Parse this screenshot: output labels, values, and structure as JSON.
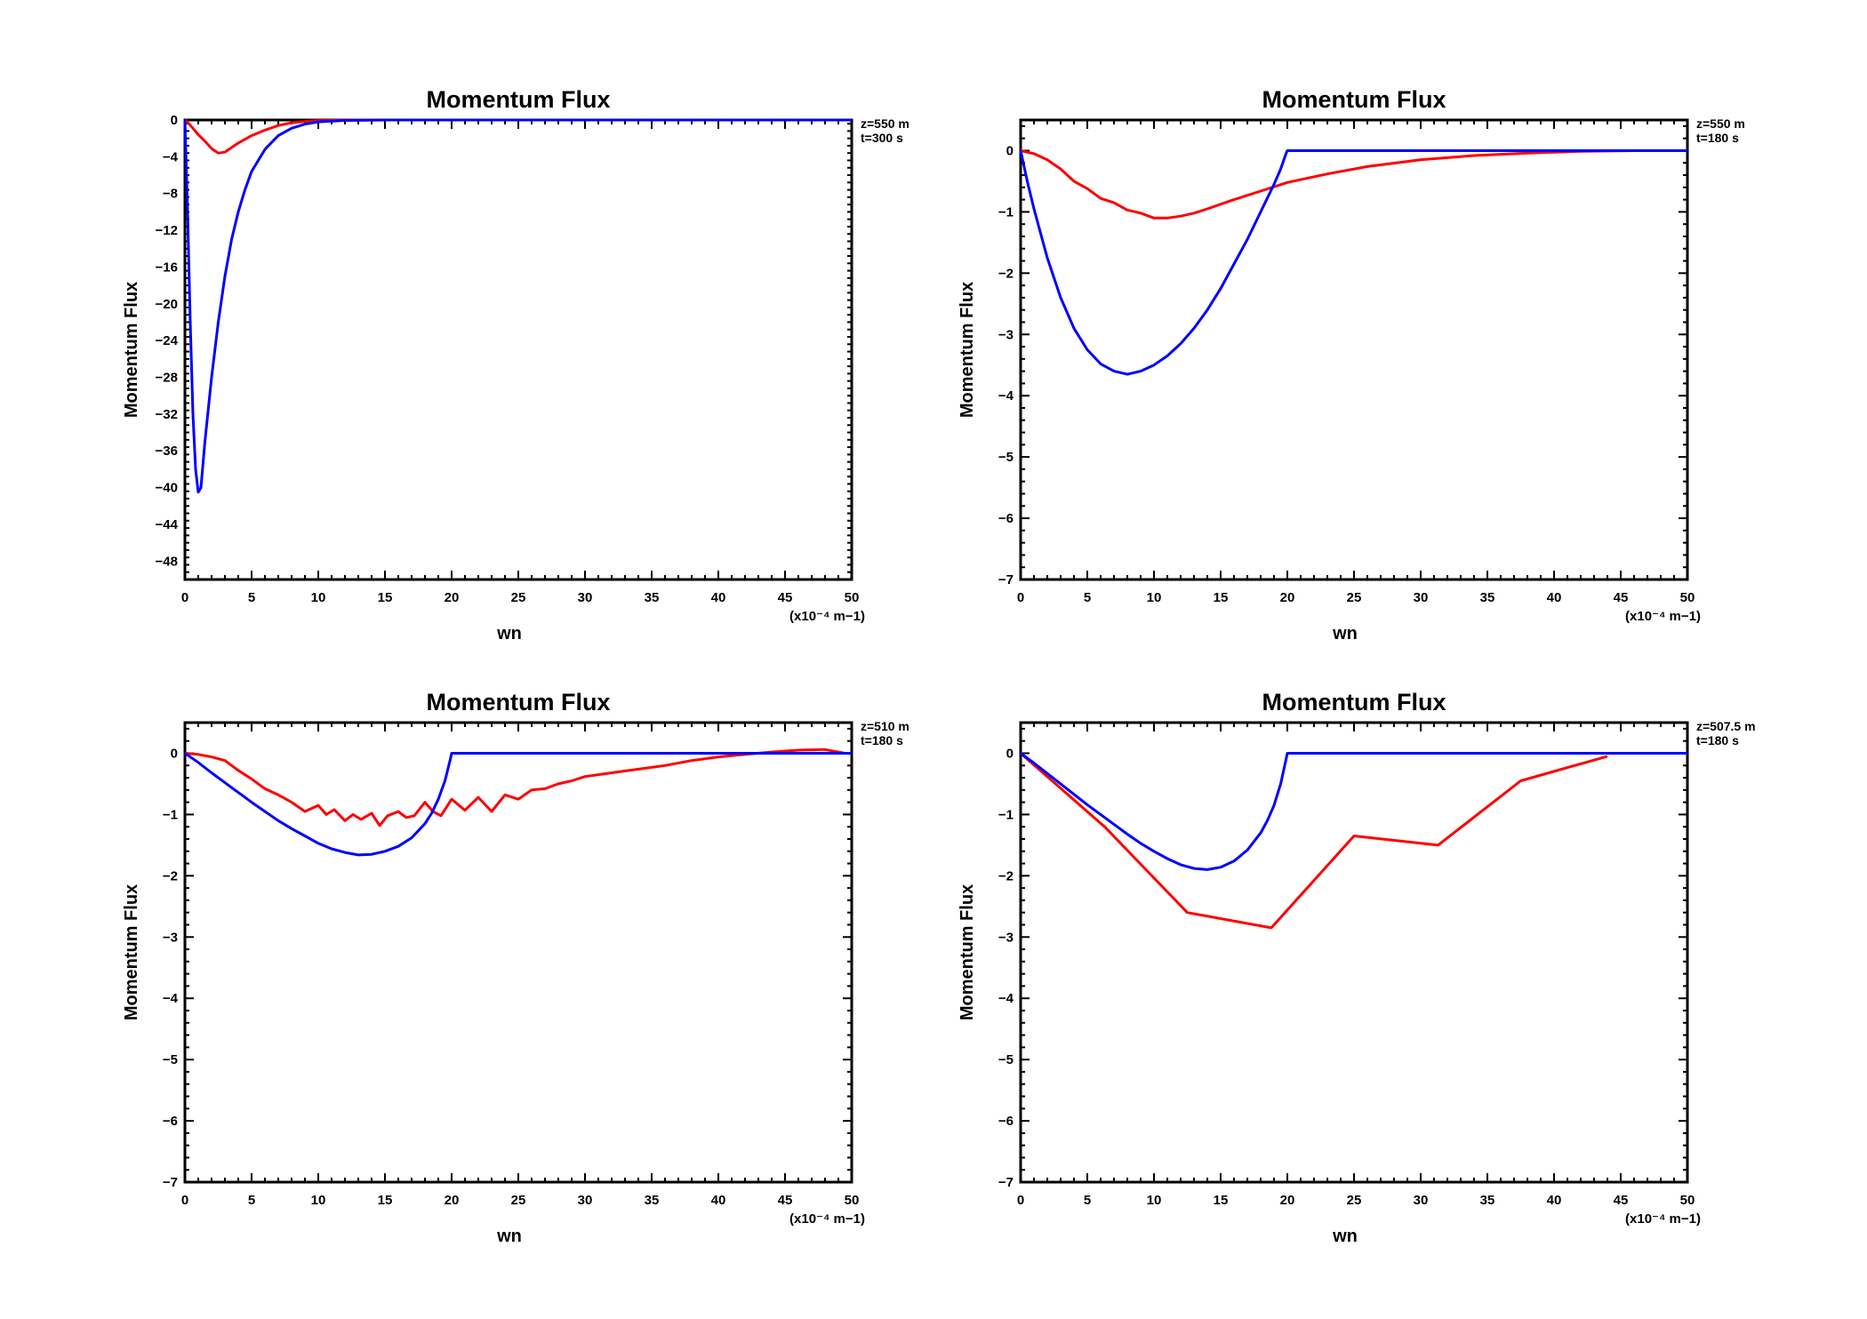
{
  "chart_data": [
    {
      "type": "line",
      "title": "Momentum Flux",
      "xlabel": "wn",
      "ylabel": "Momentum Flux",
      "x_unit": "(x10⁻⁴ m−1)",
      "annotations": [
        "z=550  m",
        "t=300  s"
      ],
      "xlim": [
        0,
        50
      ],
      "ylim": [
        -50,
        0
      ],
      "xticks": [
        0,
        5,
        10,
        15,
        20,
        25,
        30,
        35,
        40,
        45,
        50
      ],
      "yticks": [
        0,
        -4,
        -8,
        -12,
        -16,
        -20,
        -24,
        -28,
        -32,
        -36,
        -40,
        -44,
        -48
      ],
      "grid": false,
      "series": [
        {
          "color": "#ff0000",
          "x": [
            0,
            0.3,
            0.6,
            1,
            1.5,
            2,
            2.5,
            3,
            3.5,
            4,
            5,
            6,
            7,
            8,
            9,
            10,
            12,
            15,
            20,
            30,
            40,
            50
          ],
          "y": [
            0,
            -0.4,
            -0.9,
            -1.6,
            -2.3,
            -3.1,
            -3.6,
            -3.5,
            -3.0,
            -2.5,
            -1.7,
            -1.1,
            -0.6,
            -0.3,
            -0.15,
            -0.08,
            -0.03,
            0,
            0,
            0,
            0,
            0
          ]
        },
        {
          "color": "#0000ff",
          "x": [
            0,
            0.2,
            0.4,
            0.6,
            0.8,
            1.0,
            1.2,
            1.5,
            2,
            2.5,
            3,
            3.5,
            4,
            4.5,
            5,
            6,
            7,
            8,
            9,
            10,
            12,
            15,
            20,
            30,
            40,
            50
          ],
          "y": [
            0,
            -10,
            -22,
            -32,
            -38,
            -40.5,
            -40,
            -35,
            -28,
            -22,
            -17,
            -13,
            -10,
            -7.6,
            -5.6,
            -3.2,
            -1.7,
            -0.9,
            -0.45,
            -0.2,
            -0.05,
            0,
            0,
            0,
            0,
            0
          ]
        }
      ]
    },
    {
      "type": "line",
      "title": "Momentum Flux",
      "xlabel": "wn",
      "ylabel": "Momentum Flux",
      "x_unit": "(x10⁻⁴ m−1)",
      "annotations": [
        "z=550  m",
        "t=180  s"
      ],
      "xlim": [
        0,
        50
      ],
      "ylim": [
        -7,
        0.5
      ],
      "xticks": [
        0,
        5,
        10,
        15,
        20,
        25,
        30,
        35,
        40,
        45,
        50
      ],
      "yticks": [
        0,
        -1,
        -2,
        -3,
        -4,
        -5,
        -6,
        -7
      ],
      "grid": false,
      "series": [
        {
          "color": "#ff0000",
          "x": [
            0,
            1,
            2,
            3,
            4,
            5,
            6,
            7,
            8,
            9,
            10,
            11,
            12,
            13,
            14,
            16,
            18,
            20,
            23,
            26,
            30,
            34,
            38,
            42,
            46,
            50
          ],
          "y": [
            0,
            -0.05,
            -0.15,
            -0.3,
            -0.5,
            -0.62,
            -0.78,
            -0.85,
            -0.97,
            -1.02,
            -1.1,
            -1.1,
            -1.07,
            -1.02,
            -0.95,
            -0.8,
            -0.66,
            -0.52,
            -0.38,
            -0.26,
            -0.15,
            -0.08,
            -0.04,
            -0.01,
            0,
            0
          ]
        },
        {
          "color": "#0000ff",
          "x": [
            0,
            0.5,
            1,
            2,
            3,
            4,
            5,
            6,
            7,
            8,
            9,
            10,
            11,
            12,
            13,
            14,
            15,
            16,
            17,
            18,
            19,
            19.5,
            19.9,
            20,
            30,
            40,
            50
          ],
          "y": [
            0,
            -0.5,
            -0.95,
            -1.75,
            -2.4,
            -2.9,
            -3.25,
            -3.48,
            -3.6,
            -3.65,
            -3.6,
            -3.5,
            -3.35,
            -3.15,
            -2.9,
            -2.6,
            -2.25,
            -1.85,
            -1.45,
            -1.0,
            -0.55,
            -0.3,
            -0.05,
            0,
            0,
            0,
            0
          ]
        }
      ]
    },
    {
      "type": "line",
      "title": "Momentum Flux",
      "xlabel": "wn",
      "ylabel": "Momentum Flux",
      "x_unit": "(x10⁻⁴ m−1)",
      "annotations": [
        "z=510  m",
        "t=180  s"
      ],
      "xlim": [
        0,
        50
      ],
      "ylim": [
        -7,
        0.5
      ],
      "xticks": [
        0,
        5,
        10,
        15,
        20,
        25,
        30,
        35,
        40,
        45,
        50
      ],
      "yticks": [
        0,
        -1,
        -2,
        -3,
        -4,
        -5,
        -6,
        -7
      ],
      "grid": false,
      "series": [
        {
          "color": "#ff0000",
          "x": [
            0,
            1,
            2,
            3,
            4,
            5,
            6,
            7,
            8,
            9,
            10,
            10.6,
            11.2,
            12,
            12.6,
            13.2,
            14,
            14.6,
            15.2,
            16,
            16.6,
            17.2,
            18,
            18.6,
            19.2,
            20,
            21,
            22,
            23,
            24,
            25,
            26,
            27,
            28,
            29,
            30,
            32,
            34,
            36,
            38,
            40,
            42,
            44,
            46,
            48,
            49.5
          ],
          "y": [
            0,
            -0.02,
            -0.06,
            -0.12,
            -0.28,
            -0.42,
            -0.58,
            -0.68,
            -0.8,
            -0.95,
            -0.85,
            -1.0,
            -0.92,
            -1.1,
            -1.0,
            -1.08,
            -0.98,
            -1.18,
            -1.02,
            -0.95,
            -1.05,
            -1.02,
            -0.8,
            -0.95,
            -1.02,
            -0.75,
            -0.93,
            -0.72,
            -0.95,
            -0.68,
            -0.75,
            -0.6,
            -0.58,
            -0.5,
            -0.45,
            -0.38,
            -0.32,
            -0.26,
            -0.2,
            -0.12,
            -0.06,
            -0.02,
            0.02,
            0.05,
            0.06,
            0.0
          ]
        },
        {
          "color": "#0000ff",
          "x": [
            0,
            1,
            2,
            3,
            4,
            5,
            6,
            7,
            8,
            9,
            10,
            11,
            12,
            13,
            14,
            15,
            16,
            17,
            18,
            18.5,
            19,
            19.5,
            19.9,
            20,
            30,
            40,
            50
          ],
          "y": [
            0,
            -0.15,
            -0.32,
            -0.48,
            -0.64,
            -0.8,
            -0.95,
            -1.1,
            -1.23,
            -1.35,
            -1.47,
            -1.56,
            -1.62,
            -1.66,
            -1.65,
            -1.6,
            -1.52,
            -1.38,
            -1.15,
            -0.98,
            -0.75,
            -0.45,
            -0.1,
            0,
            0,
            0,
            0
          ]
        }
      ]
    },
    {
      "type": "line",
      "title": "Momentum Flux",
      "xlabel": "wn",
      "ylabel": "Momentum Flux",
      "x_unit": "(x10⁻⁴ m−1)",
      "annotations": [
        "z=507.5  m",
        "t=180  s"
      ],
      "xlim": [
        0,
        50
      ],
      "ylim": [
        -7,
        0.5
      ],
      "xticks": [
        0,
        5,
        10,
        15,
        20,
        25,
        30,
        35,
        40,
        45,
        50
      ],
      "yticks": [
        0,
        -1,
        -2,
        -3,
        -4,
        -5,
        -6,
        -7
      ],
      "grid": false,
      "series": [
        {
          "color": "#ff0000",
          "x": [
            0,
            6.3,
            12.5,
            18.8,
            25,
            31.3,
            37.5,
            44
          ],
          "y": [
            0,
            -1.2,
            -2.6,
            -2.85,
            -1.35,
            -1.5,
            -0.45,
            -0.05
          ]
        },
        {
          "color": "#0000ff",
          "x": [
            0,
            1,
            2,
            3,
            4,
            5,
            6,
            7,
            8,
            9,
            10,
            11,
            12,
            13,
            14,
            15,
            16,
            17,
            18,
            18.5,
            19,
            19.5,
            19.9,
            20,
            30,
            40,
            50
          ],
          "y": [
            0,
            -0.16,
            -0.33,
            -0.5,
            -0.67,
            -0.84,
            -1.0,
            -1.16,
            -1.32,
            -1.47,
            -1.6,
            -1.72,
            -1.82,
            -1.88,
            -1.9,
            -1.86,
            -1.76,
            -1.58,
            -1.3,
            -1.1,
            -0.85,
            -0.5,
            -0.1,
            0,
            0,
            0,
            0
          ]
        }
      ]
    }
  ]
}
